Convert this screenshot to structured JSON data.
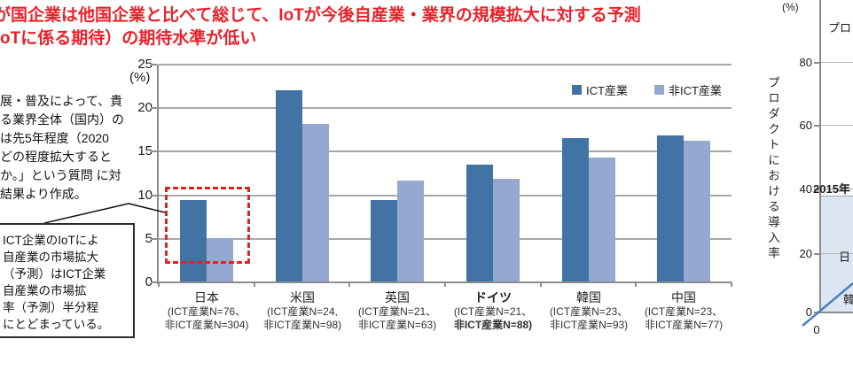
{
  "title": {
    "line1": "が国企業は他国企業と比べて総じて、IoTが今後自産業・業界の規模拡大に対する予測",
    "line2": "oTに係る期待）の期待水準が低い"
  },
  "left_note_lines": [
    "展・普及によって、貴",
    "る業界全体（国内）の",
    "は先5年程度（2020",
    "どの程度拡大すると",
    "か。」という質問 に対",
    "結果より作成。"
  ],
  "callout_lines": [
    "ICT企業のIoTによ",
    "自産業の市場拡大",
    "（予測）はICT企業",
    "自産業の市場拡",
    "率（予測）半分程",
    "にとどまっている。"
  ],
  "chart_data": [
    {
      "type": "bar",
      "unit_label": "(%)",
      "categories": [
        "日本",
        "米国",
        "英国",
        "ドイツ",
        "韓国",
        "中国"
      ],
      "category_sublines": [
        [
          "(ICT産業N=76、",
          "非ICT産業N=304)"
        ],
        [
          "(ICT産業N=24,",
          "非ICT産業N=98)"
        ],
        [
          "(ICT産業N=21、",
          "非ICT産業N=63)"
        ],
        [
          "(ICT産業N=21、",
          "非ICT産業N=88)"
        ],
        [
          "(ICT産業N=23、",
          "非ICT産業N=93)"
        ],
        [
          "(ICT産業N=23、",
          "非ICT産業N=77)"
        ]
      ],
      "bold_categories": [
        "ドイツ"
      ],
      "series": [
        {
          "name": "ICT産業",
          "color": "#4273A5",
          "values": [
            9.4,
            22.0,
            9.4,
            13.4,
            16.5,
            16.8
          ]
        },
        {
          "name": "非ICT産業",
          "color": "#94A8D0",
          "values": [
            5.0,
            18.1,
            11.6,
            11.8,
            14.2,
            16.2
          ]
        }
      ],
      "ylim": [
        0,
        25
      ],
      "ytick_step": 5,
      "grid": true,
      "legend_position": "top-right",
      "highlight": {
        "category": "日本",
        "style": "red-dashed-rect",
        "color": "#E02420"
      }
    },
    {
      "type": "scatter",
      "unit_label": "(%)",
      "ylabel": "プロダクトにおける導入率",
      "y_ticks": [
        "80",
        "60",
        "40",
        "20",
        "0"
      ],
      "x_first_tick_label": "0",
      "partial_title": "プロ",
      "region_label": "2015年",
      "point_labels": [
        "日",
        "韓"
      ],
      "has_diagonal_reference_line": true,
      "shade_color": "#DCE6F2",
      "line_color": "#4F81BD",
      "clipped_at_right_edge": true
    }
  ]
}
